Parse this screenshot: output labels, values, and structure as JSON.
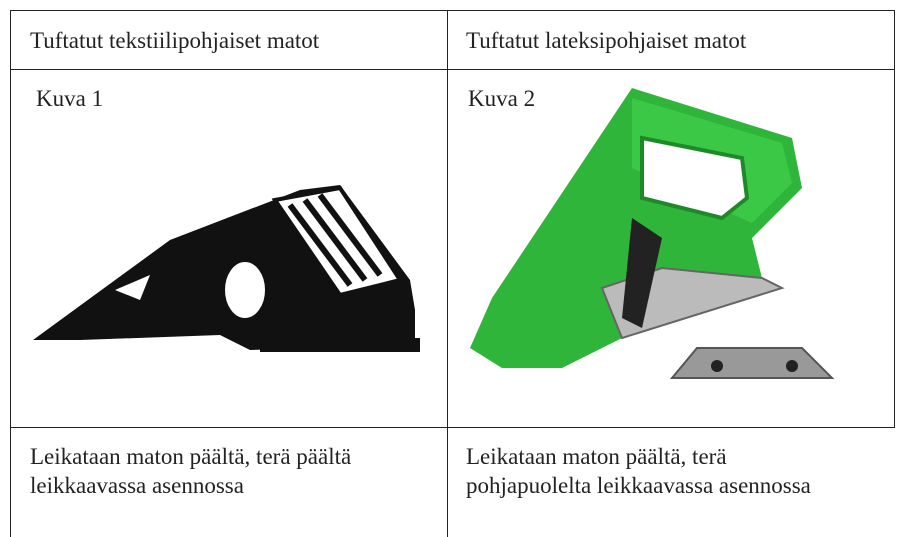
{
  "table": {
    "header": [
      "Tuftatut tekstiilipohjaiset matot",
      "Tuftatut lateksipohjaiset matot"
    ],
    "rows": [
      [
        "Kuva 1",
        "Kuva 2"
      ],
      [
        "Leikataan maton päältä, terä päältä leikkaavassa asennossa",
        "Leikataan maton päältä, terä pohjapuolelta leikkaavassa asennossa"
      ]
    ]
  }
}
